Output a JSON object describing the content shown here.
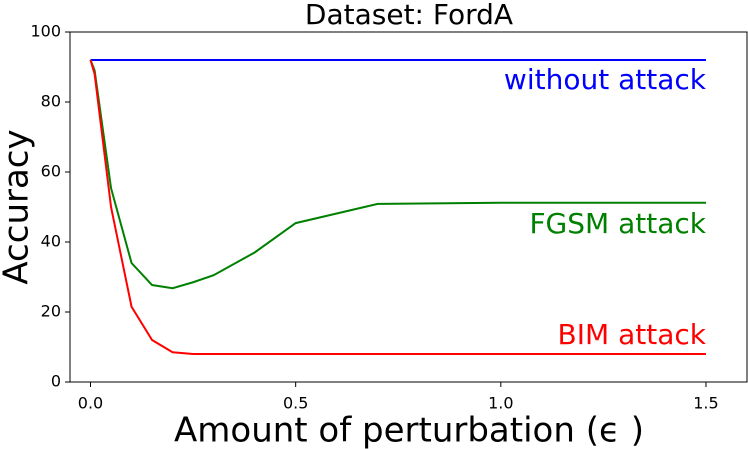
{
  "chart_data": {
    "type": "line",
    "title": "Dataset: FordA",
    "xlabel": "Amount of perturbation (ϵ )",
    "ylabel": "Accuracy",
    "x": [
      0,
      0.01,
      0.05,
      0.1,
      0.15,
      0.2,
      0.25,
      0.3,
      0.4,
      0.5,
      0.7,
      1.0,
      1.5
    ],
    "series": [
      {
        "name": "without attack",
        "color": "#0000ff",
        "values": [
          92,
          92,
          92,
          92,
          92,
          92,
          92,
          92,
          92,
          92,
          92,
          92,
          92
        ]
      },
      {
        "name": "FGSM attack",
        "color": "#008000",
        "values": [
          92,
          89,
          55.4,
          34,
          27.7,
          26.8,
          28.5,
          30.5,
          37,
          45.4,
          50.9,
          51.2,
          51.2
        ]
      },
      {
        "name": "BIM attack",
        "color": "#ff0000",
        "values": [
          92,
          88,
          50,
          21.5,
          12,
          8.5,
          8,
          8,
          8,
          8,
          8,
          8,
          8
        ]
      }
    ],
    "xlim": [
      -0.05,
      1.6
    ],
    "ylim": [
      0,
      100
    ],
    "xticks": [
      {
        "value": 0,
        "label": "0.0"
      },
      {
        "value": 0.5,
        "label": "0.5"
      },
      {
        "value": 1,
        "label": "1.0"
      },
      {
        "value": 1.5,
        "label": "1.5"
      }
    ],
    "yticks": [
      0,
      20,
      40,
      60,
      80,
      100
    ],
    "grid": false
  }
}
